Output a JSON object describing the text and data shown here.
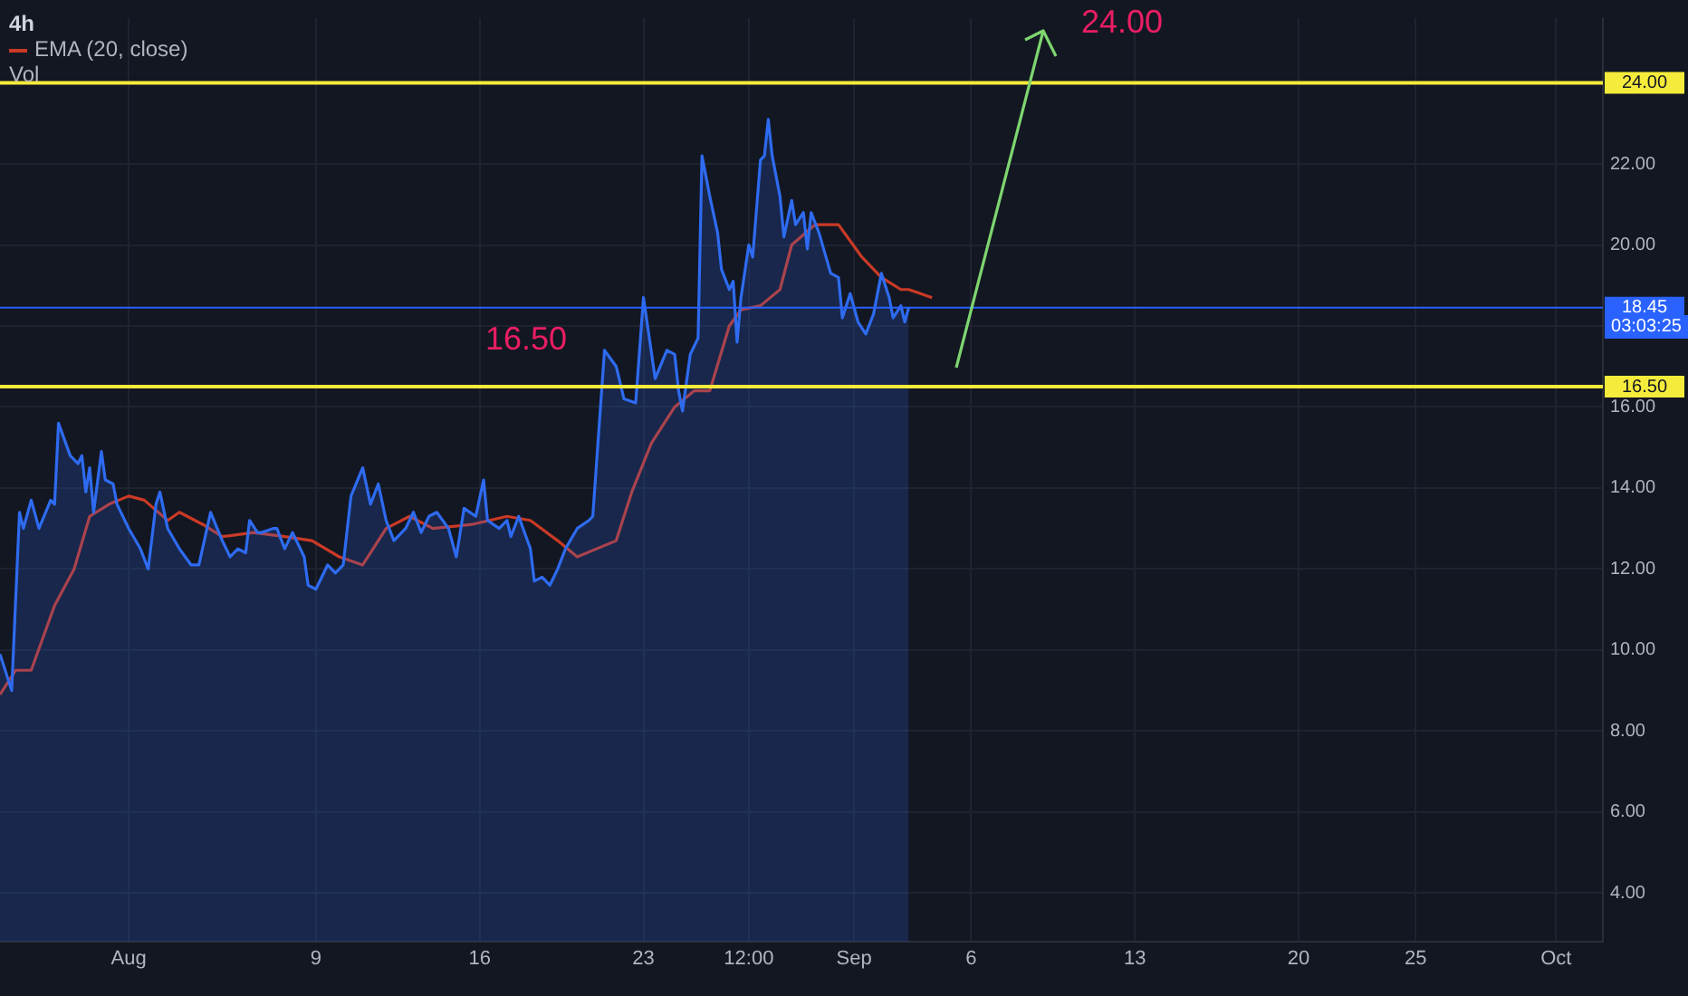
{
  "chart_data": {
    "type": "line",
    "title": "4h",
    "xlim": [
      "--07-26T12:00",
      "--10-03T00:00"
    ],
    "xticks": [
      {
        "value": "--08-01",
        "label": "Aug"
      },
      {
        "value": "--08-09",
        "label": "9"
      },
      {
        "value": "--08-16",
        "label": "16"
      },
      {
        "value": "--08-23",
        "label": "23"
      },
      {
        "value": "--08-27T12:00",
        "label": "12:00"
      },
      {
        "value": "--09-01",
        "label": "Sep"
      },
      {
        "value": "--09-06",
        "label": "6"
      },
      {
        "value": "--09-13",
        "label": "13"
      },
      {
        "value": "--09-20",
        "label": "20"
      },
      {
        "value": "--09-25",
        "label": "25"
      },
      {
        "value": "--10-01",
        "label": "Oct"
      }
    ],
    "ylim": [
      2.8,
      25.6
    ],
    "yticks": [
      {
        "value": 4,
        "label": "4.00"
      },
      {
        "value": 6,
        "label": "6.00"
      },
      {
        "value": 8,
        "label": "8.00"
      },
      {
        "value": 10,
        "label": "10.00"
      },
      {
        "value": 12,
        "label": "12.00"
      },
      {
        "value": 14,
        "label": "14.00"
      },
      {
        "value": 16,
        "label": "16.00"
      },
      {
        "value": 18,
        "label": null
      },
      {
        "value": 20,
        "label": "20.00"
      },
      {
        "value": 22,
        "label": "22.00"
      },
      {
        "value": 24,
        "label": null
      }
    ],
    "grid": true,
    "legend": "top left",
    "marker": "none",
    "series": [
      {
        "type": "area",
        "color": "#2e6bf0",
        "x": [
          "--07-26T12:00",
          "--07-27T00:00",
          "--07-27T08:00",
          "--07-27T12:00",
          "--07-27T20:00",
          "--07-28T04:00",
          "--07-28T16:00",
          "--07-28T20:00",
          "--07-29T00:00",
          "--07-29T12:00",
          "--07-29T20:00",
          "--07-30T00:00",
          "--07-30T04:00",
          "--07-30T08:00",
          "--07-30T12:00",
          "--07-30T20:00",
          "--07-31T00:00",
          "--07-31T08:00",
          "--07-31T12:00",
          "--08-01T00:00",
          "--08-01T12:00",
          "--08-01T20:00",
          "--08-02T04:00",
          "--08-02T08:00",
          "--08-02T16:00",
          "--08-03T04:00",
          "--08-03T16:00",
          "--08-04T00:00",
          "--08-04T12:00",
          "--08-05T00:00",
          "--08-05T08:00",
          "--08-05T16:00",
          "--08-06T00:00",
          "--08-06T04:00",
          "--08-06T12:00",
          "--08-06T16:00",
          "--08-07T04:00",
          "--08-07T08:00",
          "--08-07T16:00",
          "--08-08T00:00",
          "--08-08T12:00",
          "--08-08T16:00",
          "--08-09T00:00",
          "--08-09T12:00",
          "--08-09T20:00",
          "--08-10T04:00",
          "--08-10T12:00",
          "--08-11T00:00",
          "--08-11T08:00",
          "--08-11T16:00",
          "--08-12T00:00",
          "--08-12T08:00",
          "--08-12T20:00",
          "--08-13T04:00",
          "--08-13T12:00",
          "--08-13T20:00",
          "--08-14T04:00",
          "--08-14T16:00",
          "--08-15T00:00",
          "--08-15T08:00",
          "--08-15T20:00",
          "--08-16T04:00",
          "--08-16T08:00",
          "--08-16T20:00",
          "--08-17T04:00",
          "--08-17T08:00",
          "--08-17T16:00",
          "--08-18T04:00",
          "--08-18T08:00",
          "--08-18T16:00",
          "--08-19T00:00",
          "--08-19T08:00",
          "--08-19T16:00",
          "--08-20T04:00",
          "--08-20T16:00",
          "--08-20T20:00",
          "--08-21T08:00",
          "--08-21T20:00",
          "--08-22T04:00",
          "--08-22T16:00",
          "--08-23T00:00",
          "--08-23T12:00",
          "--08-24T00:00",
          "--08-24T08:00",
          "--08-24T12:00",
          "--08-24T16:00",
          "--08-25T00:00",
          "--08-25T08:00",
          "--08-25T12:00",
          "--08-25T20:00",
          "--08-26T04:00",
          "--08-26T08:00",
          "--08-26T16:00",
          "--08-26T20:00",
          "--08-27T00:00",
          "--08-27T04:00",
          "--08-27T12:00",
          "--08-27T16:00",
          "--08-28T00:00",
          "--08-28T04:00",
          "--08-28T08:00",
          "--08-28T12:00",
          "--08-28T20:00",
          "--08-29T00:00",
          "--08-29T08:00",
          "--08-29T12:00",
          "--08-29T20:00",
          "--08-30T00:00",
          "--08-30T04:00",
          "--08-30T12:00",
          "--08-31T00:00",
          "--08-31T08:00",
          "--08-31T12:00",
          "--08-31T20:00",
          "--09-01T04:00",
          "--09-01T12:00",
          "--09-01T20:00",
          "--09-02T04:00",
          "--09-02T12:00",
          "--09-02T16:00",
          "--09-03T00:00",
          "--09-03T04:00",
          "--09-03T08:00"
        ],
        "values": [
          9.9,
          9.0,
          13.4,
          13.0,
          13.7,
          13.0,
          13.7,
          13.6,
          15.6,
          14.8,
          14.6,
          14.8,
          13.9,
          14.5,
          13.4,
          14.9,
          14.2,
          14.1,
          13.6,
          13.0,
          12.5,
          12.0,
          13.6,
          13.9,
          13.0,
          12.5,
          12.1,
          12.1,
          13.4,
          12.7,
          12.3,
          12.5,
          12.4,
          13.2,
          12.9,
          12.9,
          13.0,
          13.0,
          12.5,
          12.9,
          12.3,
          11.6,
          11.5,
          12.1,
          11.9,
          12.1,
          13.8,
          14.5,
          13.6,
          14.1,
          13.2,
          12.7,
          13.0,
          13.4,
          12.9,
          13.3,
          13.4,
          13.0,
          12.3,
          13.5,
          13.3,
          14.2,
          13.2,
          13.0,
          13.2,
          12.8,
          13.3,
          12.5,
          11.7,
          11.8,
          11.6,
          12.0,
          12.5,
          13.0,
          13.2,
          13.3,
          17.4,
          17.0,
          16.2,
          16.1,
          18.7,
          16.7,
          17.4,
          17.3,
          16.4,
          15.9,
          17.3,
          17.7,
          22.2,
          21.2,
          20.3,
          19.4,
          18.9,
          19.1,
          17.6,
          18.7,
          20.0,
          19.7,
          22.1,
          22.2,
          23.1,
          22.2,
          21.2,
          20.2,
          21.1,
          20.5,
          20.8,
          19.9,
          20.8,
          20.3,
          19.3,
          19.2,
          18.2,
          18.8,
          18.1,
          17.8,
          18.3,
          19.3,
          18.7,
          18.2,
          18.5,
          18.1,
          18.45
        ]
      },
      {
        "type": "line",
        "name": "EMA (20, close)",
        "color": "#c93a26",
        "x": [
          "--07-26T12:00",
          "--07-27T04:00",
          "--07-27T20:00",
          "--07-28T20:00",
          "--07-29T16:00",
          "--07-30T08:00",
          "--07-31T04:00",
          "--08-01T00:00",
          "--08-01T16:00",
          "--08-02T16:00",
          "--08-03T04:00",
          "--08-04T04:00",
          "--08-05T00:00",
          "--08-06T08:00",
          "--08-07T16:00",
          "--08-08T20:00",
          "--08-10T00:00",
          "--08-11T00:00",
          "--08-12T00:00",
          "--08-13T00:00",
          "--08-14T00:00",
          "--08-15T16:00",
          "--08-17T04:00",
          "--08-18T04:00",
          "--08-19T08:00",
          "--08-20T04:00",
          "--08-21T20:00",
          "--08-22T12:00",
          "--08-23T08:00",
          "--08-24T08:00",
          "--08-25T04:00",
          "--08-25T20:00",
          "--08-26T16:00",
          "--08-27T04:00",
          "--08-28T00:00",
          "--08-28T20:00",
          "--08-29T08:00",
          "--08-30T08:00",
          "--08-31T08:00",
          "--09-01T08:00",
          "--09-02T04:00",
          "--09-03T00:00",
          "--09-03T08:00",
          "--09-04T08:00"
        ],
        "values": [
          8.9,
          9.5,
          9.5,
          11.1,
          12.0,
          13.3,
          13.6,
          13.8,
          13.7,
          13.2,
          13.4,
          13.1,
          12.8,
          12.9,
          12.8,
          12.7,
          12.3,
          12.1,
          13.0,
          13.3,
          13.0,
          13.1,
          13.3,
          13.2,
          12.7,
          12.3,
          12.7,
          13.9,
          15.1,
          16.0,
          16.4,
          16.4,
          18.0,
          18.4,
          18.5,
          18.9,
          20.0,
          20.5,
          20.5,
          19.7,
          19.2,
          18.9,
          18.9,
          18.7
        ]
      }
    ],
    "ref_lines": [
      {
        "axis": "y",
        "value": 24,
        "label": "24.00",
        "color": "#f5eb3b"
      },
      {
        "axis": "y",
        "value": 16.5,
        "label": "16.50",
        "color": "#f5eb3b"
      },
      {
        "axis": "y",
        "value": 18.45,
        "label": "18.45",
        "color": "#2962ff"
      }
    ],
    "annotations": [
      "24.00",
      "16.50",
      "03:03:25",
      "Vol"
    ]
  }
}
